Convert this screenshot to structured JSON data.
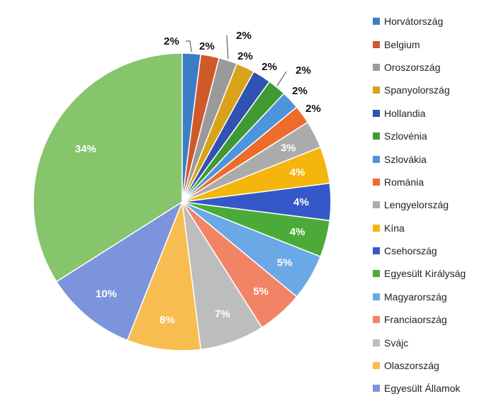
{
  "chart_data": {
    "type": "pie",
    "title": "",
    "legend_position": "right",
    "slices": [
      {
        "label": "Horvátország",
        "value": 2,
        "value_label": "2%",
        "color": "#3c7dc4"
      },
      {
        "label": "Belgium",
        "value": 2,
        "value_label": "2%",
        "color": "#d0592a"
      },
      {
        "label": "Oroszország",
        "value": 2,
        "value_label": "2%",
        "color": "#9a9a9a"
      },
      {
        "label": "Spanyolország",
        "value": 2,
        "value_label": "2%",
        "color": "#d8a318"
      },
      {
        "label": "Hollandia",
        "value": 2,
        "value_label": "2%",
        "color": "#2f52b3"
      },
      {
        "label": "Szlovénia",
        "value": 2,
        "value_label": "2%",
        "color": "#3f9a33"
      },
      {
        "label": "Szlovákia",
        "value": 2,
        "value_label": "2%",
        "color": "#4d94dc"
      },
      {
        "label": "Románia",
        "value": 2,
        "value_label": "2%",
        "color": "#ed6c2b"
      },
      {
        "label": "Lengyelország",
        "value": 3,
        "value_label": "3%",
        "color": "#ababab"
      },
      {
        "label": "Kína",
        "value": 4,
        "value_label": "4%",
        "color": "#f4b60c"
      },
      {
        "label": "Csehország",
        "value": 4,
        "value_label": "4%",
        "color": "#3558c9"
      },
      {
        "label": "Egyesült Királyság",
        "value": 4,
        "value_label": "4%",
        "color": "#4cab38"
      },
      {
        "label": "Magyarország",
        "value": 5,
        "value_label": "5%",
        "color": "#6aa8e6"
      },
      {
        "label": "Franciaország",
        "value": 5,
        "value_label": "5%",
        "color": "#f28465"
      },
      {
        "label": "Svájc",
        "value": 7,
        "value_label": "7%",
        "color": "#bdbdbd"
      },
      {
        "label": "Olaszország",
        "value": 8,
        "value_label": "8%",
        "color": "#f8bd50"
      },
      {
        "label": "Egyesült Államok",
        "value": 10,
        "value_label": "10%",
        "color": "#7c94db"
      },
      {
        "label": "",
        "value": 34,
        "value_label": "34%",
        "color": "#86c56c"
      }
    ]
  }
}
